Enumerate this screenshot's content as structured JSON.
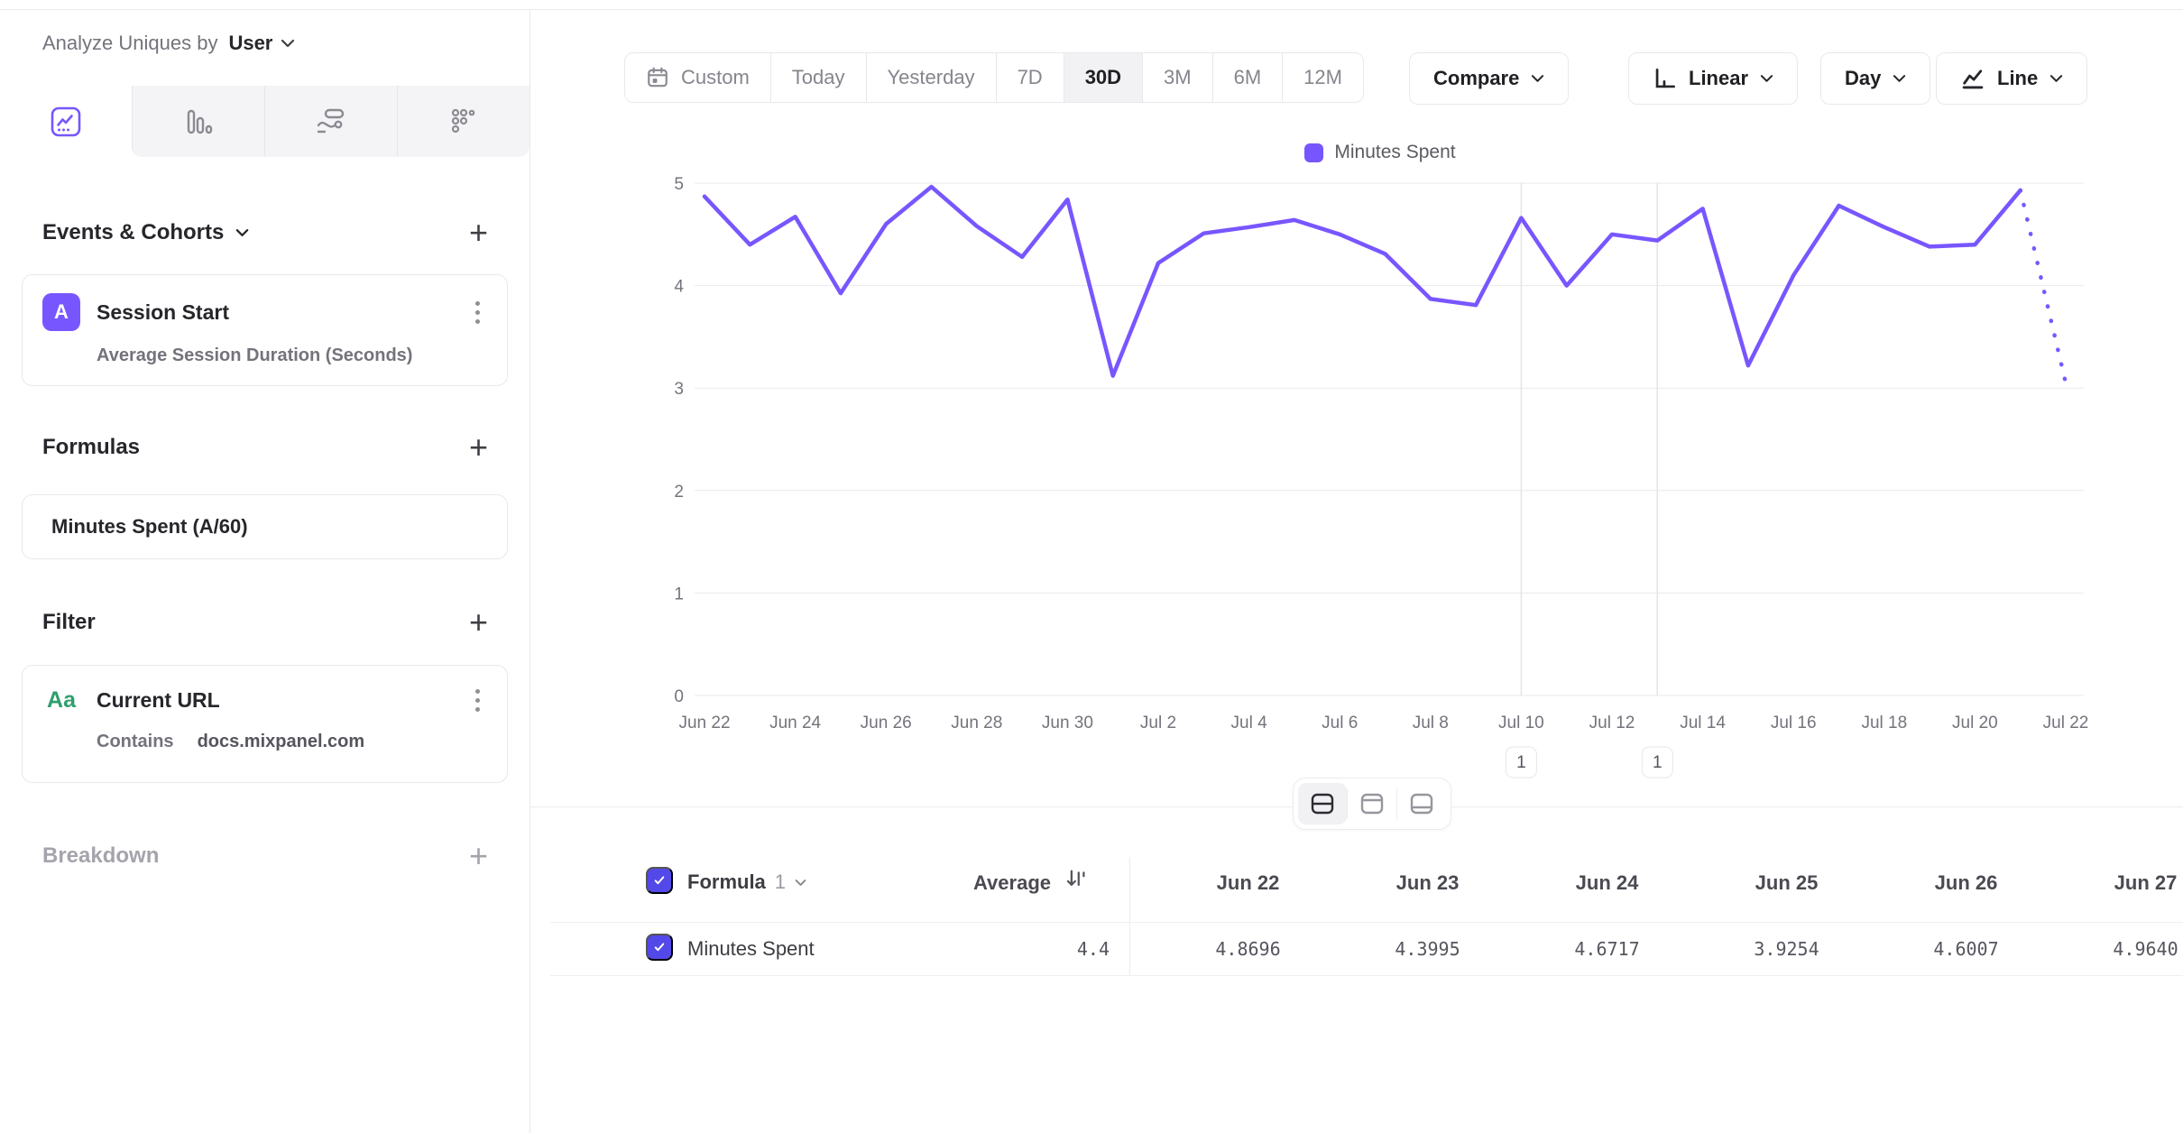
{
  "sidebar": {
    "analyze_label": "Analyze Uniques by",
    "analyze_value": "User",
    "tabs": [
      {
        "name": "insights",
        "selected": true
      },
      {
        "name": "bars",
        "selected": false
      },
      {
        "name": "flows",
        "selected": false
      },
      {
        "name": "retention",
        "selected": false
      }
    ],
    "events_section": {
      "title": "Events & Cohorts",
      "add_label": "+"
    },
    "event_card": {
      "badge": "A",
      "title": "Session Start",
      "subtitle": "Average Session Duration (Seconds)"
    },
    "formulas_section": {
      "title": "Formulas",
      "add_label": "+"
    },
    "formula_card": {
      "title": "Minutes Spent (A/60)"
    },
    "filter_section": {
      "title": "Filter",
      "add_label": "+"
    },
    "filter_card": {
      "icon": "Aa",
      "title": "Current URL",
      "operator": "Contains",
      "value": "docs.mixpanel.com"
    },
    "breakdown_section": {
      "title": "Breakdown",
      "add_label": "+"
    }
  },
  "toolbar": {
    "date_ranges": [
      "Custom",
      "Today",
      "Yesterday",
      "7D",
      "30D",
      "3M",
      "6M",
      "12M"
    ],
    "selected_range": "30D",
    "compare_label": "Compare",
    "scale_label": "Linear",
    "granularity_label": "Day",
    "chart_type_label": "Line"
  },
  "chart_data": {
    "type": "line",
    "title": "",
    "legend_position": "top-center",
    "grid": "horizontal",
    "ylim": [
      0,
      5
    ],
    "yticks": [
      0,
      1,
      2,
      3,
      4,
      5
    ],
    "x": [
      "Jun 22",
      "Jun 23",
      "Jun 24",
      "Jun 25",
      "Jun 26",
      "Jun 27",
      "Jun 28",
      "Jun 29",
      "Jun 30",
      "Jul 1",
      "Jul 2",
      "Jul 3",
      "Jul 4",
      "Jul 5",
      "Jul 6",
      "Jul 7",
      "Jul 8",
      "Jul 9",
      "Jul 10",
      "Jul 11",
      "Jul 12",
      "Jul 13",
      "Jul 14",
      "Jul 15",
      "Jul 16",
      "Jul 17",
      "Jul 18",
      "Jul 19",
      "Jul 20",
      "Jul 21",
      "Jul 22"
    ],
    "x_tick_step": 2,
    "series": [
      {
        "name": "Minutes Spent",
        "color": "#7856ff",
        "values": [
          4.8696,
          4.3995,
          4.6717,
          3.9254,
          4.6007,
          4.964,
          4.58,
          4.28,
          4.84,
          3.12,
          4.22,
          4.51,
          4.57,
          4.64,
          4.5,
          4.31,
          3.87,
          3.81,
          4.66,
          4.0,
          4.5,
          4.44,
          4.75,
          3.22,
          4.1,
          4.78,
          4.57,
          4.38,
          4.4,
          4.93,
          3.05
        ]
      }
    ],
    "incomplete_last_segment": true,
    "annotations": [
      {
        "label": "1",
        "x": "Jul 10"
      },
      {
        "label": "1",
        "x": "Jul 13"
      }
    ]
  },
  "view_toggles": {
    "options": [
      "split-view",
      "chart-only",
      "table-only"
    ],
    "selected": "split-view"
  },
  "table": {
    "formula_label": "Formula",
    "formula_index": "1",
    "average_label": "Average",
    "dates": [
      "Jun 22",
      "Jun 23",
      "Jun 24",
      "Jun 25",
      "Jun 26",
      "Jun 27"
    ],
    "row": {
      "name": "Minutes Spent",
      "average": "4.4",
      "values": [
        "4.8696",
        "4.3995",
        "4.6717",
        "3.9254",
        "4.6007",
        "4.9640"
      ]
    }
  },
  "colors": {
    "accent": "#7856ff",
    "checkbox": "#5348e8",
    "filter_icon_green": "#2f9e6e",
    "annotation_line": "#e4e4e8"
  }
}
